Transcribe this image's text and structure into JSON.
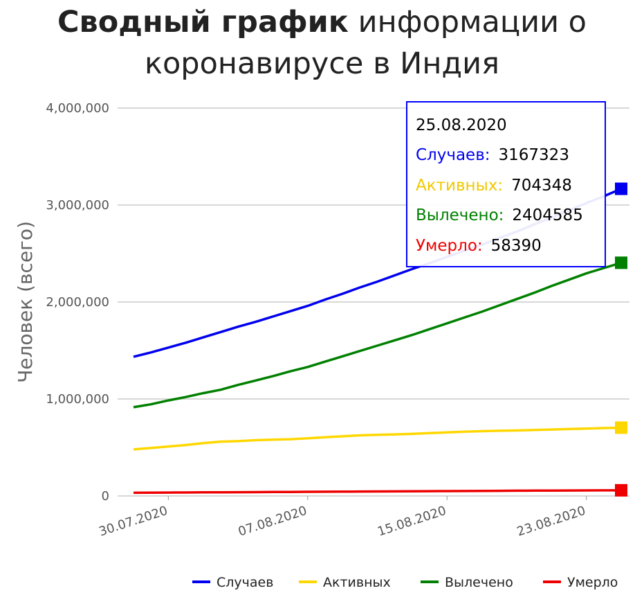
{
  "title": {
    "bold": "Сводный график",
    "regular": "информации о коронавирусе в Индия"
  },
  "chart_data": {
    "type": "line",
    "title": "Сводный график информации о коронавирусе в Индия",
    "xlabel": "",
    "ylabel": "Человек (всего)",
    "ylim": [
      0,
      4000000
    ],
    "yticks": [
      0,
      1000000,
      2000000,
      3000000,
      4000000
    ],
    "ytick_labels": [
      "0",
      "1,000,000",
      "2,000,000",
      "3,000,000",
      "4,000,000"
    ],
    "xlim": [
      "28.07.2020",
      "25.08.2020"
    ],
    "xticks": [
      "30.07.2020",
      "07.08.2020",
      "15.08.2020",
      "23.08.2020"
    ],
    "grid": true,
    "legend_position": "bottom-right",
    "x": [
      "28.07.2020",
      "29.07.2020",
      "30.07.2020",
      "31.07.2020",
      "01.08.2020",
      "02.08.2020",
      "03.08.2020",
      "04.08.2020",
      "05.08.2020",
      "06.08.2020",
      "07.08.2020",
      "08.08.2020",
      "09.08.2020",
      "10.08.2020",
      "11.08.2020",
      "12.08.2020",
      "13.08.2020",
      "14.08.2020",
      "15.08.2020",
      "16.08.2020",
      "17.08.2020",
      "18.08.2020",
      "19.08.2020",
      "20.08.2020",
      "21.08.2020",
      "22.08.2020",
      "23.08.2020",
      "24.08.2020",
      "25.08.2020"
    ],
    "series": [
      {
        "name": "Случаев",
        "color": "#0000ee",
        "values": [
          1435000,
          1480000,
          1530000,
          1580000,
          1635000,
          1690000,
          1745000,
          1795000,
          1850000,
          1905000,
          1960000,
          2025000,
          2085000,
          2150000,
          2210000,
          2275000,
          2340000,
          2400000,
          2465000,
          2530000,
          2590000,
          2660000,
          2725000,
          2800000,
          2870000,
          2945000,
          3020000,
          3090000,
          3167323
        ]
      },
      {
        "name": "Активных",
        "color": "#ffd700",
        "values": [
          480000,
          495000,
          510000,
          525000,
          545000,
          560000,
          565000,
          575000,
          580000,
          585000,
          595000,
          605000,
          615000,
          625000,
          630000,
          635000,
          640000,
          648000,
          655000,
          662000,
          668000,
          672000,
          675000,
          680000,
          685000,
          690000,
          695000,
          700000,
          704348
        ]
      },
      {
        "name": "Вылечено",
        "color": "#008000",
        "values": [
          915000,
          945000,
          985000,
          1020000,
          1060000,
          1095000,
          1145000,
          1190000,
          1235000,
          1285000,
          1330000,
          1385000,
          1440000,
          1495000,
          1550000,
          1605000,
          1660000,
          1720000,
          1780000,
          1840000,
          1900000,
          1965000,
          2030000,
          2095000,
          2165000,
          2230000,
          2295000,
          2350000,
          2404585
        ]
      },
      {
        "name": "Умерло",
        "color": "#ee0000",
        "values": [
          33000,
          34000,
          35000,
          36000,
          37000,
          38000,
          38500,
          39500,
          40500,
          41500,
          42500,
          43500,
          44500,
          45500,
          46500,
          47000,
          48000,
          49000,
          50000,
          51000,
          52000,
          53000,
          54000,
          55000,
          56000,
          56500,
          57000,
          57700,
          58390
        ]
      }
    ],
    "tooltip": {
      "date": "25.08.2020",
      "rows": [
        {
          "label": "Случаев:",
          "value": "3167323",
          "color": "#0000ee"
        },
        {
          "label": "Активных:",
          "value": "704348",
          "color": "#f0c800"
        },
        {
          "label": "Вылечено:",
          "value": "2404585",
          "color": "#008000"
        },
        {
          "label": "Умерло:",
          "value": "58390",
          "color": "#ee0000"
        }
      ]
    }
  }
}
